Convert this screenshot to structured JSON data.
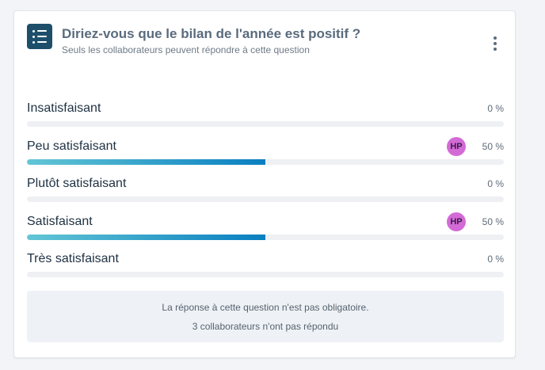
{
  "question": {
    "title": "Diriez-vous que le bilan de l'année est positif ?",
    "subtitle": "Seuls les collaborateurs peuvent répondre à cette question",
    "icon": "list-icon",
    "accent": "#1d4f6b"
  },
  "options": [
    {
      "label": "Insatisfaisant",
      "percent_text": "0 %",
      "fraction": 0,
      "avatar": ""
    },
    {
      "label": "Peu satisfaisant",
      "percent_text": "50 %",
      "fraction": 0.5,
      "avatar": "HP"
    },
    {
      "label": "Plutôt satisfaisant",
      "percent_text": "0 %",
      "fraction": 0,
      "avatar": ""
    },
    {
      "label": "Satisfaisant",
      "percent_text": "50 %",
      "fraction": 0.5,
      "avatar": "HP"
    },
    {
      "label": "Très satisfaisant",
      "percent_text": "0 %",
      "fraction": 0,
      "avatar": ""
    }
  ],
  "notice": {
    "line1": "La réponse à cette question n'est pas obligatoire.",
    "line2": "3 collaborateurs n'ont pas répondu"
  },
  "colors": {
    "bar_start": "#63c6d6",
    "bar_end": "#0a7fc0",
    "avatar_bg": "#d36bd6"
  }
}
